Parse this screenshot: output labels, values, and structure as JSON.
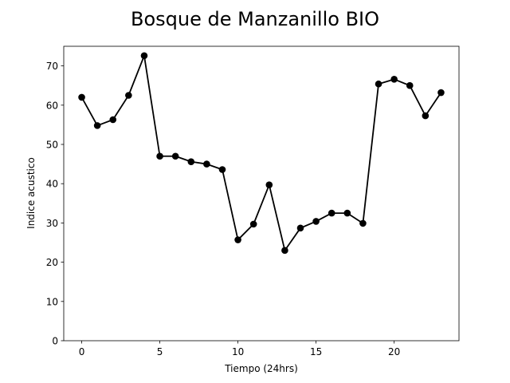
{
  "chart_data": {
    "type": "line",
    "title": "Bosque de Manzanillo BIO",
    "xlabel": "Tiempo (24hrs)",
    "ylabel": "Indice acustico",
    "x": [
      0,
      1,
      2,
      3,
      4,
      5,
      6,
      7,
      8,
      9,
      10,
      11,
      12,
      13,
      14,
      15,
      16,
      17,
      18,
      19,
      20,
      21,
      22,
      23
    ],
    "series": [
      {
        "values": [
          62.0,
          54.8,
          56.3,
          62.5,
          72.6,
          47.0,
          47.0,
          45.6,
          45.0,
          43.6,
          25.7,
          29.7,
          39.7,
          23.0,
          28.7,
          30.4,
          32.5,
          32.5,
          29.9,
          65.4,
          66.6,
          65.0,
          57.3,
          63.2
        ],
        "color": "#000000",
        "marker": "circle"
      }
    ],
    "xlim": [
      -1.15,
      24.15
    ],
    "ylim": [
      0,
      75
    ],
    "xticks": [
      0,
      5,
      10,
      15,
      20
    ],
    "yticks": [
      0,
      10,
      20,
      30,
      40,
      50,
      60,
      70
    ],
    "grid": false,
    "legend": "none"
  }
}
